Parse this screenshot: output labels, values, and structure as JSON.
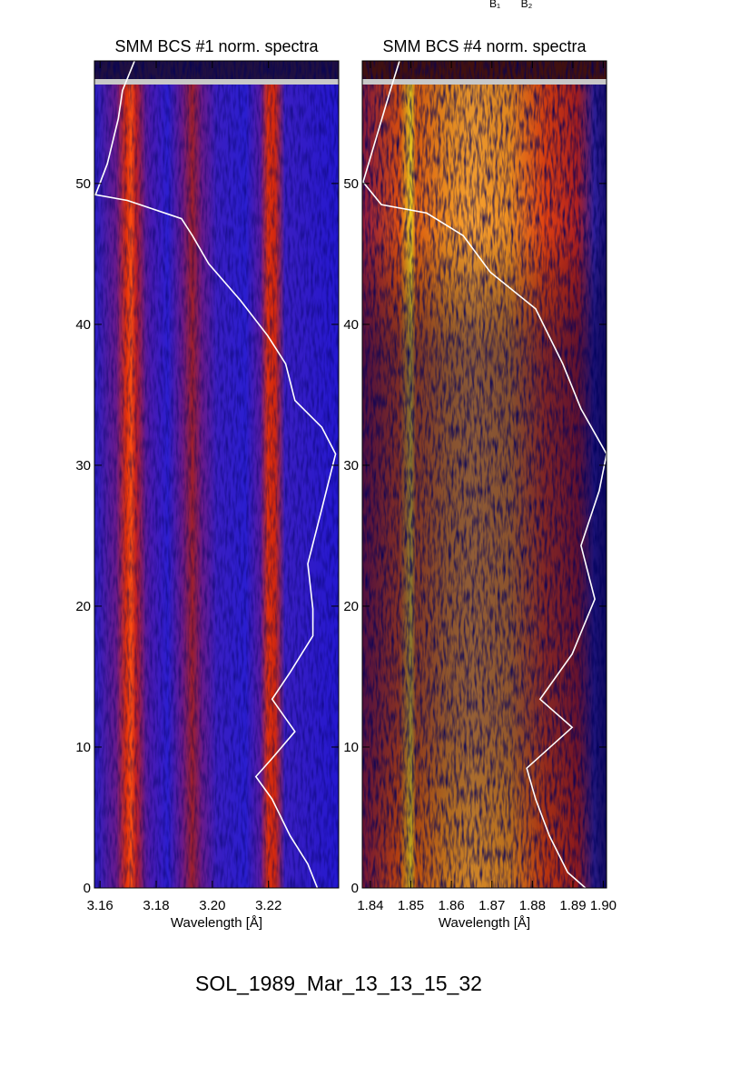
{
  "chart_data": [
    {
      "type": "line",
      "title": "SMM BCS #1 norm. spectra",
      "xlabel": "Wavelength [Å]",
      "xlim": [
        3.158,
        3.245
      ],
      "xticks": [
        3.16,
        3.18,
        {
          "value": 3.2,
          "label": "3.20"
        },
        3.22
      ],
      "ylim": [
        0,
        58.7
      ],
      "yticks": [
        0,
        10,
        20,
        30,
        40,
        50
      ],
      "series": [
        {
          "color": "#ffffff",
          "x": [
            3.2374,
            3.234,
            3.2277,
            3.2213,
            3.2155,
            3.2213,
            3.2294,
            3.2213,
            3.2277,
            3.2358,
            3.2358,
            3.234,
            3.239,
            3.2439,
            3.239,
            3.2294,
            3.2261,
            3.2197,
            3.21,
            3.1987,
            3.1929,
            3.189,
            3.1697,
            3.1584,
            3.1626,
            3.1665,
            3.168,
            3.1723
          ],
          "values": [
            0,
            1.7,
            3.7,
            6.3,
            7.9,
            9.2,
            11.1,
            13.4,
            15.3,
            17.9,
            19.8,
            23.0,
            26.9,
            30.8,
            32.7,
            34.6,
            37.2,
            39.2,
            41.7,
            44.3,
            46.3,
            47.5,
            48.8,
            49.2,
            51.4,
            54.6,
            56.6,
            58.7
          ]
        }
      ]
    },
    {
      "type": "line",
      "title": "SMM BCS #4 norm. spectra",
      "xlabel": "Wavelength [Å]",
      "xlim": [
        1.838,
        1.8983
      ],
      "xticks": [
        1.84,
        1.85,
        1.86,
        1.87,
        1.88,
        1.89,
        {
          "value": 1.8975,
          "label": "1.90"
        }
      ],
      "ylim": [
        0,
        58.7
      ],
      "yticks": [
        0,
        10,
        20,
        30,
        40,
        50
      ],
      "series": [
        {
          "color": "#ffffff",
          "x": [
            1.8931,
            1.8887,
            1.8842,
            1.8808,
            1.8786,
            1.8898,
            1.8819,
            1.8898,
            1.8954,
            1.892,
            1.8965,
            1.8983,
            1.892,
            1.8875,
            1.8808,
            1.8696,
            1.8629,
            1.8539,
            1.8427,
            1.8382,
            1.8416,
            1.8449,
            1.8472
          ],
          "values": [
            0,
            1.1,
            3.7,
            6.3,
            8.5,
            11.4,
            13.4,
            16.6,
            20.5,
            24.3,
            28.2,
            30.8,
            34.0,
            37.2,
            41.1,
            43.7,
            46.3,
            47.9,
            48.5,
            50.1,
            53.4,
            56.6,
            58.7
          ]
        }
      ]
    }
  ],
  "figure": {
    "caption": "SOL_1989_Mar_13_13_15_32",
    "labels": [
      "B₁",
      "B₂"
    ]
  }
}
